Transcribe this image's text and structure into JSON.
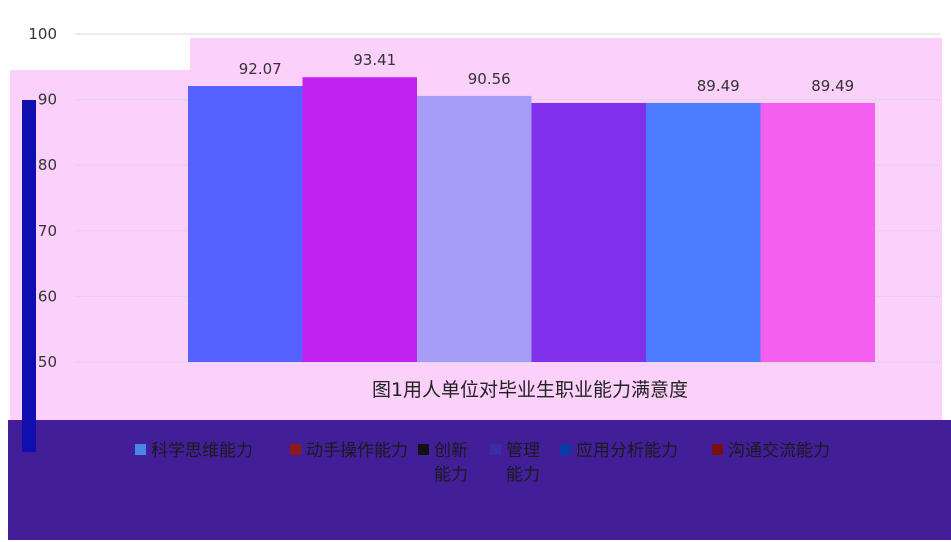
{
  "colors": {
    "page_background": "#ffffff",
    "plot_background": "#fbd0fb",
    "gridline": "#d9d9d9",
    "legend_band": "#431e99",
    "left_bar": "#0f0fb0"
  },
  "chart_data": {
    "type": "bar",
    "title": "图1用人单位对毕业生职业能力满意度",
    "ylim": [
      50,
      100
    ],
    "yticks": [
      50,
      60,
      70,
      80,
      90,
      100
    ],
    "grid": true,
    "legend_position": "bottom",
    "series": [
      {
        "name": "科学思维能力",
        "value": 92.07,
        "label": "92.07",
        "color": "#5662ff"
      },
      {
        "name": "动手操作能力",
        "value": 93.41,
        "label": "93.41",
        "color": "#c122f2"
      },
      {
        "name": "创新能力",
        "value": 90.56,
        "label": "90.56",
        "color": "#a69ef6"
      },
      {
        "name": "管理能力",
        "value": 89.49,
        "label": "",
        "color": "#8130ec"
      },
      {
        "name": "应用分析能力",
        "value": 89.49,
        "label": "89.49",
        "color": "#4b7bff"
      },
      {
        "name": "沟通交流能力",
        "value": 89.49,
        "label": "89.49",
        "color": "#f45ff0"
      }
    ],
    "legend_swatch_colors": [
      "#4a86e8",
      "#8a1b1b",
      "#111111",
      "#3a2ba6",
      "#0a3aa8",
      "#7a0f0f"
    ]
  }
}
